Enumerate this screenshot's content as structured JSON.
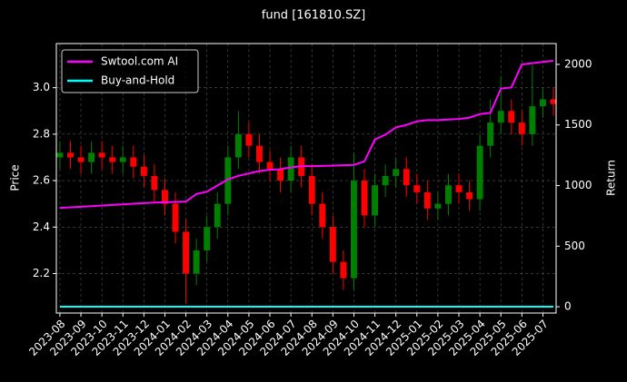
{
  "chart_data": {
    "type": "candlestick",
    "title": "fund [161810.SZ]",
    "ylabel": "Price",
    "y2label": "Return",
    "x": [
      0,
      0.5,
      1,
      1.5,
      2,
      2.5,
      3,
      3.5,
      4,
      4.5,
      5,
      5.5,
      6,
      6.5,
      7,
      7.5,
      8,
      8.5,
      9,
      9.5,
      10,
      10.5,
      11,
      11.5,
      12,
      12.5,
      13,
      13.5,
      14,
      14.5,
      15,
      15.5,
      16,
      16.5,
      17,
      17.5,
      18,
      18.5,
      19,
      19.5,
      20,
      20.5,
      21,
      21.5,
      22,
      22.5,
      23,
      23.5
    ],
    "open": [
      2.7,
      2.72,
      2.7,
      2.68,
      2.72,
      2.7,
      2.68,
      2.7,
      2.66,
      2.62,
      2.56,
      2.5,
      2.38,
      2.2,
      2.3,
      2.4,
      2.5,
      2.7,
      2.8,
      2.75,
      2.68,
      2.65,
      2.6,
      2.7,
      2.62,
      2.5,
      2.4,
      2.25,
      2.18,
      2.6,
      2.45,
      2.58,
      2.62,
      2.65,
      2.58,
      2.55,
      2.48,
      2.5,
      2.58,
      2.55,
      2.52,
      2.75,
      2.85,
      2.9,
      2.85,
      2.8,
      2.92,
      2.95
    ],
    "high": [
      2.77,
      2.77,
      2.75,
      2.77,
      2.77,
      2.75,
      2.75,
      2.75,
      2.71,
      2.67,
      2.61,
      2.55,
      2.43,
      2.35,
      2.45,
      2.55,
      2.75,
      2.9,
      2.85,
      2.8,
      2.73,
      2.7,
      2.75,
      2.75,
      2.67,
      2.55,
      2.45,
      2.3,
      2.72,
      2.65,
      2.63,
      2.67,
      2.7,
      2.7,
      2.63,
      2.6,
      2.55,
      2.63,
      2.63,
      2.6,
      2.8,
      2.95,
      3.05,
      2.95,
      2.9,
      3.1,
      3.0,
      3.0
    ],
    "low": [
      2.65,
      2.65,
      2.63,
      2.63,
      2.65,
      2.63,
      2.63,
      2.61,
      2.57,
      2.51,
      2.45,
      2.33,
      2.07,
      2.15,
      2.25,
      2.35,
      2.45,
      2.65,
      2.7,
      2.63,
      2.6,
      2.55,
      2.55,
      2.57,
      2.45,
      2.35,
      2.2,
      2.13,
      2.13,
      2.4,
      2.4,
      2.53,
      2.57,
      2.53,
      2.5,
      2.43,
      2.43,
      2.45,
      2.5,
      2.47,
      2.47,
      2.7,
      2.8,
      2.8,
      2.75,
      2.75,
      2.87,
      2.88
    ],
    "close": [
      2.72,
      2.7,
      2.68,
      2.72,
      2.7,
      2.68,
      2.7,
      2.66,
      2.62,
      2.56,
      2.5,
      2.38,
      2.2,
      2.3,
      2.4,
      2.5,
      2.7,
      2.8,
      2.75,
      2.68,
      2.65,
      2.6,
      2.7,
      2.62,
      2.5,
      2.4,
      2.25,
      2.18,
      2.6,
      2.45,
      2.58,
      2.62,
      2.65,
      2.58,
      2.55,
      2.48,
      2.5,
      2.58,
      2.55,
      2.52,
      2.75,
      2.85,
      2.9,
      2.85,
      2.8,
      2.92,
      2.95,
      2.93
    ],
    "up_color": "#008000",
    "down_color": "#ff0000",
    "series": [
      {
        "name": "Swtool.com AI",
        "color": "#ff00ff",
        "axis": "y2",
        "values": [
          816,
          820,
          825,
          830,
          835,
          840,
          845,
          850,
          855,
          860,
          862,
          865,
          868,
          930,
          950,
          1000,
          1050,
          1080,
          1100,
          1120,
          1130,
          1135,
          1150,
          1160,
          1160,
          1162,
          1165,
          1168,
          1170,
          1200,
          1380,
          1420,
          1480,
          1500,
          1530,
          1540,
          1540,
          1545,
          1550,
          1560,
          1590,
          1600,
          1800,
          1810,
          2000,
          2010,
          2020,
          2030
        ]
      },
      {
        "name": "Buy-and-Hold",
        "color": "#00ffff",
        "axis": "y2",
        "values": [
          0,
          0,
          0,
          0,
          0,
          0,
          0,
          0,
          0,
          0,
          0,
          0,
          0,
          0,
          0,
          0,
          0,
          0,
          0,
          0,
          0,
          0,
          0,
          0,
          0,
          0,
          0,
          0,
          0,
          0,
          0,
          0,
          0,
          0,
          0,
          0,
          0,
          0,
          0,
          0,
          0,
          0,
          0,
          0,
          0,
          0,
          0,
          0
        ]
      }
    ],
    "xlim": [
      -0.17,
      23.63
    ],
    "xticks": [
      {
        "value": 0,
        "label": "2023-08"
      },
      {
        "value": 1,
        "label": "2023-09"
      },
      {
        "value": 2,
        "label": "2023-10"
      },
      {
        "value": 3,
        "label": "2023-11"
      },
      {
        "value": 4,
        "label": "2023-12"
      },
      {
        "value": 5,
        "label": "2024-01"
      },
      {
        "value": 6,
        "label": "2024-02"
      },
      {
        "value": 7,
        "label": "2024-03"
      },
      {
        "value": 8,
        "label": "2024-04"
      },
      {
        "value": 9,
        "label": "2024-05"
      },
      {
        "value": 10,
        "label": "2024-06"
      },
      {
        "value": 11,
        "label": "2024-07"
      },
      {
        "value": 12,
        "label": "2024-08"
      },
      {
        "value": 13,
        "label": "2024-09"
      },
      {
        "value": 14,
        "label": "2024-10"
      },
      {
        "value": 15,
        "label": "2024-11"
      },
      {
        "value": 16,
        "label": "2024-12"
      },
      {
        "value": 17,
        "label": "2025-01"
      },
      {
        "value": 18,
        "label": "2025-02"
      },
      {
        "value": 19,
        "label": "2025-03"
      },
      {
        "value": 20,
        "label": "2025-04"
      },
      {
        "value": 21,
        "label": "2025-05"
      },
      {
        "value": 22,
        "label": "2025-06"
      },
      {
        "value": 23,
        "label": "2025-07"
      }
    ],
    "ylim": [
      2.03,
      3.19
    ],
    "yticks": [
      2.2,
      2.4,
      2.6,
      2.8,
      {
        "value": 3,
        "label": "3.0"
      }
    ],
    "y2lim": [
      -52,
      2172
    ],
    "y2ticks": [
      0,
      500,
      1000,
      1500,
      2000
    ],
    "grid": true,
    "legend": "upper left"
  }
}
